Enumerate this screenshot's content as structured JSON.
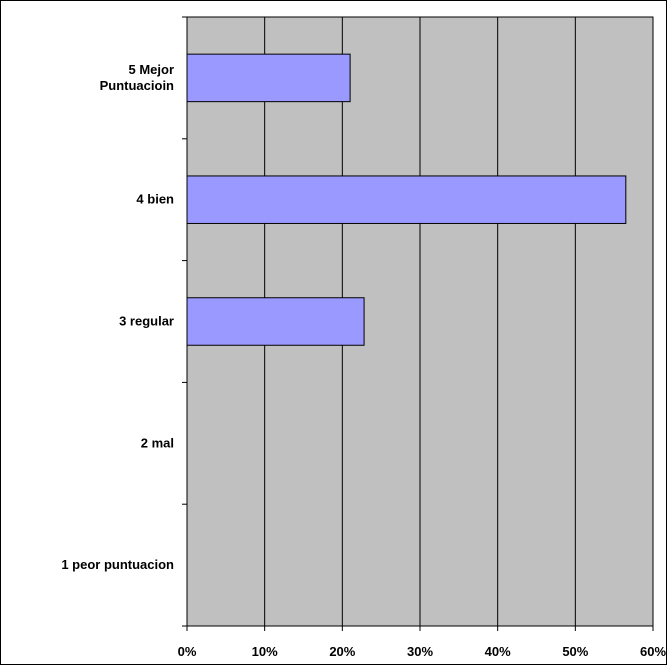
{
  "chart_data": {
    "type": "bar",
    "orientation": "horizontal",
    "categories": [
      [
        "5 Mejor",
        "Puntuacioin"
      ],
      [
        "4 bien"
      ],
      [
        "3 regular"
      ],
      [
        "2 mal"
      ],
      [
        "1 peor puntuacion"
      ]
    ],
    "values": [
      0.21,
      0.565,
      0.228,
      0.0,
      0.0
    ],
    "x_ticks": [
      "0%",
      "10%",
      "20%",
      "30%",
      "40%",
      "50%",
      "60%"
    ],
    "xlim": [
      0,
      0.6
    ],
    "grid": true,
    "legend": "none",
    "colors": {
      "plot_background": "#c0c0c0",
      "bar_fill": "#9999ff",
      "bar_stroke": "#000000",
      "gridline": "#000000",
      "frame": "#000000"
    }
  }
}
